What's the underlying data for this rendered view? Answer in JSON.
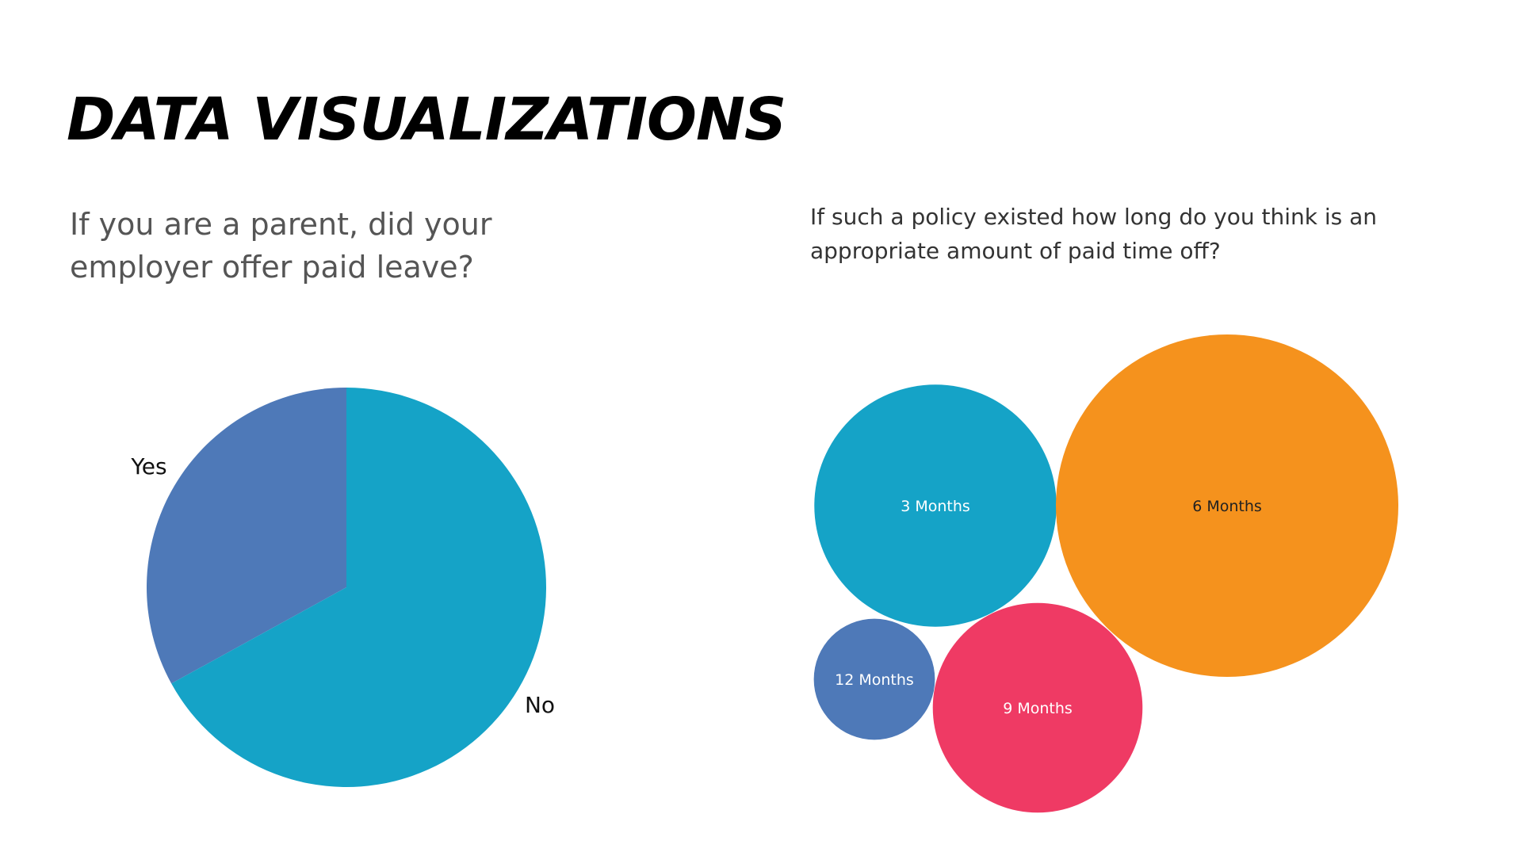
{
  "page": {
    "title": "DATA VISUALIZATIONS"
  },
  "chart_data": [
    {
      "type": "pie",
      "title": "If you are a parent, did your employer offer paid leave?",
      "categories": [
        "Yes",
        "No"
      ],
      "values": [
        33,
        67
      ],
      "colors": [
        "#4e79b8",
        "#15a3c7"
      ]
    },
    {
      "type": "bubble",
      "title": "If such a policy existed how long do you think is an appropriate amount of paid time off?",
      "categories": [
        "3 Months",
        "6 Months",
        "9 Months",
        "12 Months"
      ],
      "values": [
        24,
        48,
        18,
        6
      ],
      "colors": [
        "#15a3c7",
        "#f5921d",
        "#ef3a64",
        "#4e79b8"
      ],
      "label_colors": [
        "#ffffff",
        "#222222",
        "#ffffff",
        "#ffffff"
      ]
    }
  ]
}
